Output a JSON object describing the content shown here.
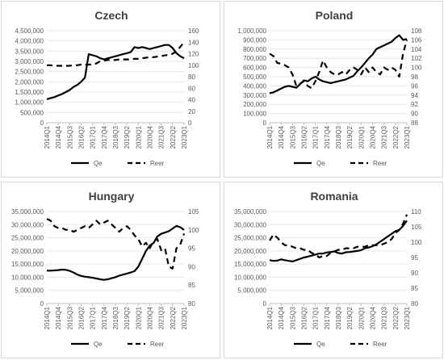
{
  "chart_data": [
    {
      "type": "line",
      "title": "Czech",
      "x": [
        "2014Q1",
        "2014Q2",
        "2014Q3",
        "2014Q4",
        "2015Q1",
        "2015Q2",
        "2015Q3",
        "2015Q4",
        "2016Q1",
        "2016Q2",
        "2016Q3",
        "2016Q4",
        "2017Q1",
        "2017Q2",
        "2017Q3",
        "2017Q4",
        "2018Q1",
        "2018Q2",
        "2018Q3",
        "2018Q4",
        "2019Q1",
        "2019Q2",
        "2019Q3",
        "2019Q4",
        "2020Q1",
        "2020Q2",
        "2020Q3",
        "2020Q4",
        "2021Q1",
        "2021Q2",
        "2021Q3",
        "2021Q4",
        "2022Q1",
        "2022Q2",
        "2022Q3",
        "2022Q4",
        "2023Q1"
      ],
      "x_tick_labels": [
        "2014Q1",
        "2014Q4",
        "2015Q3",
        "2016Q2",
        "2017Q1",
        "2017Q4",
        "2018Q3",
        "2019Q2",
        "2020Q1",
        "2020Q4",
        "2021Q3",
        "2022Q2",
        "2023Q1"
      ],
      "left_axis": {
        "ticks": [
          "0",
          "500,000",
          "1,000,000",
          "1,500,000",
          "2,000,000",
          "2,500,000",
          "3,000,000",
          "3,500,000",
          "4,000,000",
          "4,500,000"
        ],
        "ylim": [
          0,
          4500000
        ]
      },
      "right_axis": {
        "ticks": [
          "0",
          "20",
          "40",
          "60",
          "80",
          "100",
          "120",
          "140",
          "160"
        ],
        "ylim": [
          0,
          160
        ]
      },
      "series": [
        {
          "name": "Qe",
          "axis": "left",
          "style": "solid",
          "values": [
            1150000,
            1200000,
            1250000,
            1330000,
            1400000,
            1500000,
            1600000,
            1750000,
            1850000,
            2000000,
            2200000,
            3350000,
            3300000,
            3250000,
            3150000,
            3100000,
            3150000,
            3200000,
            3250000,
            3300000,
            3350000,
            3400000,
            3450000,
            3700000,
            3650000,
            3700000,
            3650000,
            3600000,
            3650000,
            3700000,
            3750000,
            3800000,
            3800000,
            3650000,
            3400000,
            3250000,
            3150000
          ]
        },
        {
          "name": "Reer",
          "axis": "right",
          "style": "dashed",
          "values": [
            100,
            100,
            99,
            99,
            99,
            99,
            99,
            100,
            100,
            101,
            101,
            101,
            101,
            103,
            107,
            108,
            109,
            109,
            109,
            110,
            110,
            110,
            110,
            111,
            111,
            112,
            113,
            114,
            114,
            115,
            116,
            117,
            118,
            120,
            124,
            132,
            140
          ]
        }
      ]
    },
    {
      "type": "line",
      "title": "Poland",
      "x": [
        "2014Q1",
        "2014Q2",
        "2014Q3",
        "2014Q4",
        "2015Q1",
        "2015Q2",
        "2015Q3",
        "2015Q4",
        "2016Q1",
        "2016Q2",
        "2016Q3",
        "2016Q4",
        "2017Q1",
        "2017Q2",
        "2017Q3",
        "2017Q4",
        "2018Q1",
        "2018Q2",
        "2018Q3",
        "2018Q4",
        "2019Q1",
        "2019Q2",
        "2019Q3",
        "2019Q4",
        "2020Q1",
        "2020Q2",
        "2020Q3",
        "2020Q4",
        "2021Q1",
        "2021Q2",
        "2021Q3",
        "2021Q4",
        "2022Q1",
        "2022Q2",
        "2022Q3",
        "2022Q4",
        "2023Q1"
      ],
      "x_tick_labels": [
        "2014Q1",
        "2014Q4",
        "2015Q3",
        "2016Q2",
        "2017Q1",
        "2017Q4",
        "2018Q3",
        "2019Q2",
        "2020Q1",
        "2020Q4",
        "2021Q3",
        "2022Q2",
        "2023Q1"
      ],
      "left_axis": {
        "ticks": [
          "0",
          "100,000",
          "200,000",
          "300,000",
          "400,000",
          "500,000",
          "600,000",
          "700,000",
          "800,000",
          "900,000",
          "1,000,000"
        ],
        "ylim": [
          0,
          1000000
        ]
      },
      "right_axis": {
        "ticks": [
          "88",
          "90",
          "92",
          "94",
          "96",
          "98",
          "100",
          "102",
          "104",
          "106",
          "108"
        ],
        "ylim": [
          88,
          108
        ]
      },
      "series": [
        {
          "name": "Qe",
          "axis": "left",
          "style": "solid",
          "values": [
            320000,
            330000,
            350000,
            370000,
            390000,
            400000,
            390000,
            380000,
            420000,
            460000,
            450000,
            480000,
            500000,
            470000,
            450000,
            440000,
            430000,
            440000,
            450000,
            460000,
            470000,
            490000,
            510000,
            560000,
            600000,
            650000,
            700000,
            740000,
            800000,
            820000,
            840000,
            860000,
            880000,
            920000,
            950000,
            900000,
            910000
          ]
        },
        {
          "name": "Reer",
          "axis": "right",
          "style": "dashed",
          "values": [
            103,
            102.5,
            101,
            100.8,
            100.5,
            100,
            98.5,
            96,
            96.5,
            97,
            96,
            95.5,
            97,
            99,
            101.5,
            100,
            99,
            98.5,
            98.5,
            99,
            98.5,
            99.5,
            100,
            99.5,
            98.5,
            100,
            99,
            100,
            99,
            98.5,
            100,
            99.5,
            100,
            99.5,
            98,
            103,
            106
          ]
        }
      ]
    },
    {
      "type": "line",
      "title": "Hungary",
      "x": [
        "2014Q1",
        "2014Q2",
        "2014Q3",
        "2014Q4",
        "2015Q1",
        "2015Q2",
        "2015Q3",
        "2015Q4",
        "2016Q1",
        "2016Q2",
        "2016Q3",
        "2016Q4",
        "2017Q1",
        "2017Q2",
        "2017Q3",
        "2017Q4",
        "2018Q1",
        "2018Q2",
        "2018Q3",
        "2018Q4",
        "2019Q1",
        "2019Q2",
        "2019Q3",
        "2019Q4",
        "2020Q1",
        "2020Q2",
        "2020Q3",
        "2020Q4",
        "2021Q1",
        "2021Q2",
        "2021Q3",
        "2021Q4",
        "2022Q1",
        "2022Q2",
        "2022Q3",
        "2022Q4",
        "2023Q1"
      ],
      "x_tick_labels": [
        "2014Q1",
        "2014Q4",
        "2015Q3",
        "2016Q2",
        "2017Q1",
        "2017Q4",
        "2018Q3",
        "2019Q2",
        "2020Q1",
        "2020Q4",
        "2021Q3",
        "2022Q2",
        "2023Q1"
      ],
      "left_axis": {
        "ticks": [
          "0",
          "5,000,000",
          "10,000,000",
          "15,000,000",
          "20,000,000",
          "25,000,000",
          "30,000,000",
          "35,000,000"
        ],
        "ylim": [
          0,
          35000000
        ]
      },
      "right_axis": {
        "ticks": [
          "80",
          "85",
          "90",
          "95",
          "100",
          "105"
        ],
        "ylim": [
          80,
          105
        ]
      },
      "series": [
        {
          "name": "Qe",
          "axis": "left",
          "style": "solid",
          "values": [
            12500000,
            12500000,
            12600000,
            12700000,
            12900000,
            12800000,
            12400000,
            11800000,
            11000000,
            10500000,
            10200000,
            10000000,
            9800000,
            9500000,
            9200000,
            9000000,
            9200000,
            9600000,
            10000000,
            10600000,
            11000000,
            11400000,
            11800000,
            12300000,
            14000000,
            17000000,
            20000000,
            22000000,
            23000000,
            25500000,
            26500000,
            27000000,
            27500000,
            28500000,
            29500000,
            29000000,
            28000000
          ]
        },
        {
          "name": "Reer",
          "axis": "right",
          "style": "dashed",
          "values": [
            103,
            102.5,
            101,
            100.5,
            100.5,
            100,
            100,
            99.5,
            100,
            100.5,
            101,
            100.5,
            101.5,
            102.5,
            101.5,
            102,
            102.5,
            101.5,
            100.5,
            99.5,
            100.5,
            101,
            100,
            98.5,
            97.5,
            95.5,
            96.5,
            95,
            97,
            97.5,
            94.5,
            95,
            90,
            89.5,
            95,
            96,
            99
          ]
        }
      ]
    },
    {
      "type": "line",
      "title": "Romania",
      "x": [
        "2014Q1",
        "2014Q2",
        "2014Q3",
        "2014Q4",
        "2015Q1",
        "2015Q2",
        "2015Q3",
        "2015Q4",
        "2016Q1",
        "2016Q2",
        "2016Q3",
        "2016Q4",
        "2017Q1",
        "2017Q2",
        "2017Q3",
        "2017Q4",
        "2018Q1",
        "2018Q2",
        "2018Q3",
        "2018Q4",
        "2019Q1",
        "2019Q2",
        "2019Q3",
        "2019Q4",
        "2020Q1",
        "2020Q2",
        "2020Q3",
        "2020Q4",
        "2021Q1",
        "2021Q2",
        "2021Q3",
        "2021Q4",
        "2022Q1",
        "2022Q2",
        "2022Q3",
        "2022Q4",
        "2023Q1"
      ],
      "x_tick_labels": [
        "2014Q1",
        "2014Q4",
        "2015Q3",
        "2016Q2",
        "2017Q1",
        "2017Q4",
        "2018Q3",
        "2019Q2",
        "2020Q1",
        "2020Q4",
        "2021Q3",
        "2022Q2",
        "2023Q1"
      ],
      "left_axis": {
        "ticks": [
          "0",
          "5,000,000",
          "10,000,000",
          "15,000,000",
          "20,000,000",
          "25,000,000",
          "30,000,000",
          "35,000,000"
        ],
        "ylim": [
          0,
          35000000
        ]
      },
      "right_axis": {
        "ticks": [
          "80",
          "85",
          "90",
          "95",
          "100",
          "105",
          "110"
        ],
        "ylim": [
          80,
          110
        ]
      },
      "series": [
        {
          "name": "Qe",
          "axis": "left",
          "style": "solid",
          "values": [
            16500000,
            16200000,
            16300000,
            16800000,
            16500000,
            16200000,
            16000000,
            16500000,
            17000000,
            17500000,
            17800000,
            18200000,
            18600000,
            19000000,
            19000000,
            19400000,
            19600000,
            19800000,
            19200000,
            19000000,
            19500000,
            19600000,
            19800000,
            20000000,
            20300000,
            21000000,
            21300000,
            21800000,
            22500000,
            23500000,
            24500000,
            25500000,
            26500000,
            27500000,
            28000000,
            29500000,
            31500000
          ]
        },
        {
          "name": "Reer",
          "axis": "right",
          "style": "dashed",
          "values": [
            100.5,
            102.5,
            101.5,
            100,
            99,
            99,
            98.5,
            98,
            98,
            97.5,
            97.5,
            96.5,
            96,
            95,
            95.5,
            95.5,
            96.5,
            97,
            97.5,
            97.5,
            98,
            98,
            98,
            98.5,
            98.5,
            98.5,
            99,
            99,
            99,
            99,
            99.5,
            100,
            101,
            103,
            104,
            106,
            109
          ]
        }
      ]
    }
  ]
}
